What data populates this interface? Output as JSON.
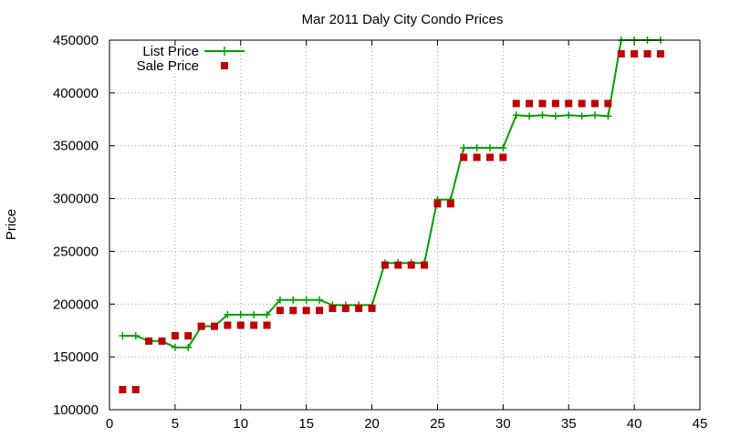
{
  "chart_data": {
    "type": "line",
    "title": "Mar 2011 Daly City Condo Prices",
    "xlabel": "",
    "ylabel": "Price",
    "xlim": [
      0,
      45
    ],
    "ylim": [
      100000,
      450000
    ],
    "xticks": [
      0,
      5,
      10,
      15,
      20,
      25,
      30,
      35,
      40,
      45
    ],
    "yticks": [
      100000,
      150000,
      200000,
      250000,
      300000,
      350000,
      400000,
      450000
    ],
    "grid": true,
    "legend_position": "top-left",
    "series": [
      {
        "name": "List Price",
        "style": "line-plus",
        "color": "#00a000",
        "x": [
          1,
          2,
          3,
          4,
          5,
          6,
          7,
          8,
          9,
          10,
          11,
          12,
          13,
          14,
          15,
          16,
          17,
          18,
          19,
          20,
          21,
          22,
          23,
          24,
          25,
          26,
          27,
          28,
          29,
          30,
          31,
          32,
          33,
          34,
          35,
          36,
          37,
          38,
          39,
          40,
          41,
          42
        ],
        "values": [
          170000,
          170000,
          165000,
          165000,
          159000,
          159000,
          179000,
          179000,
          190000,
          190000,
          190000,
          190000,
          204000,
          204000,
          204000,
          204000,
          199000,
          199000,
          199000,
          199000,
          239000,
          239000,
          239000,
          239000,
          299000,
          299000,
          348000,
          348000,
          348000,
          348000,
          379000,
          378000,
          379000,
          378000,
          379000,
          378000,
          379000,
          378000,
          450000,
          450000,
          450000,
          450000
        ]
      },
      {
        "name": "Sale Price",
        "style": "square-points",
        "color": "#c00000",
        "x": [
          1,
          2,
          3,
          4,
          5,
          6,
          7,
          8,
          9,
          10,
          11,
          12,
          13,
          14,
          15,
          16,
          17,
          18,
          19,
          20,
          21,
          22,
          23,
          24,
          25,
          26,
          27,
          28,
          29,
          30,
          31,
          32,
          33,
          34,
          35,
          36,
          37,
          38,
          39,
          40,
          41,
          42
        ],
        "values": [
          119000,
          119000,
          165000,
          165000,
          170000,
          170000,
          179000,
          179000,
          180000,
          180000,
          180000,
          180000,
          194000,
          194000,
          194000,
          194000,
          196000,
          196000,
          196000,
          196000,
          237000,
          237000,
          237000,
          237000,
          295000,
          295000,
          339000,
          339000,
          339000,
          339000,
          390000,
          390000,
          390000,
          390000,
          390000,
          390000,
          390000,
          390000,
          437000,
          437000,
          437000,
          437000
        ]
      }
    ]
  }
}
